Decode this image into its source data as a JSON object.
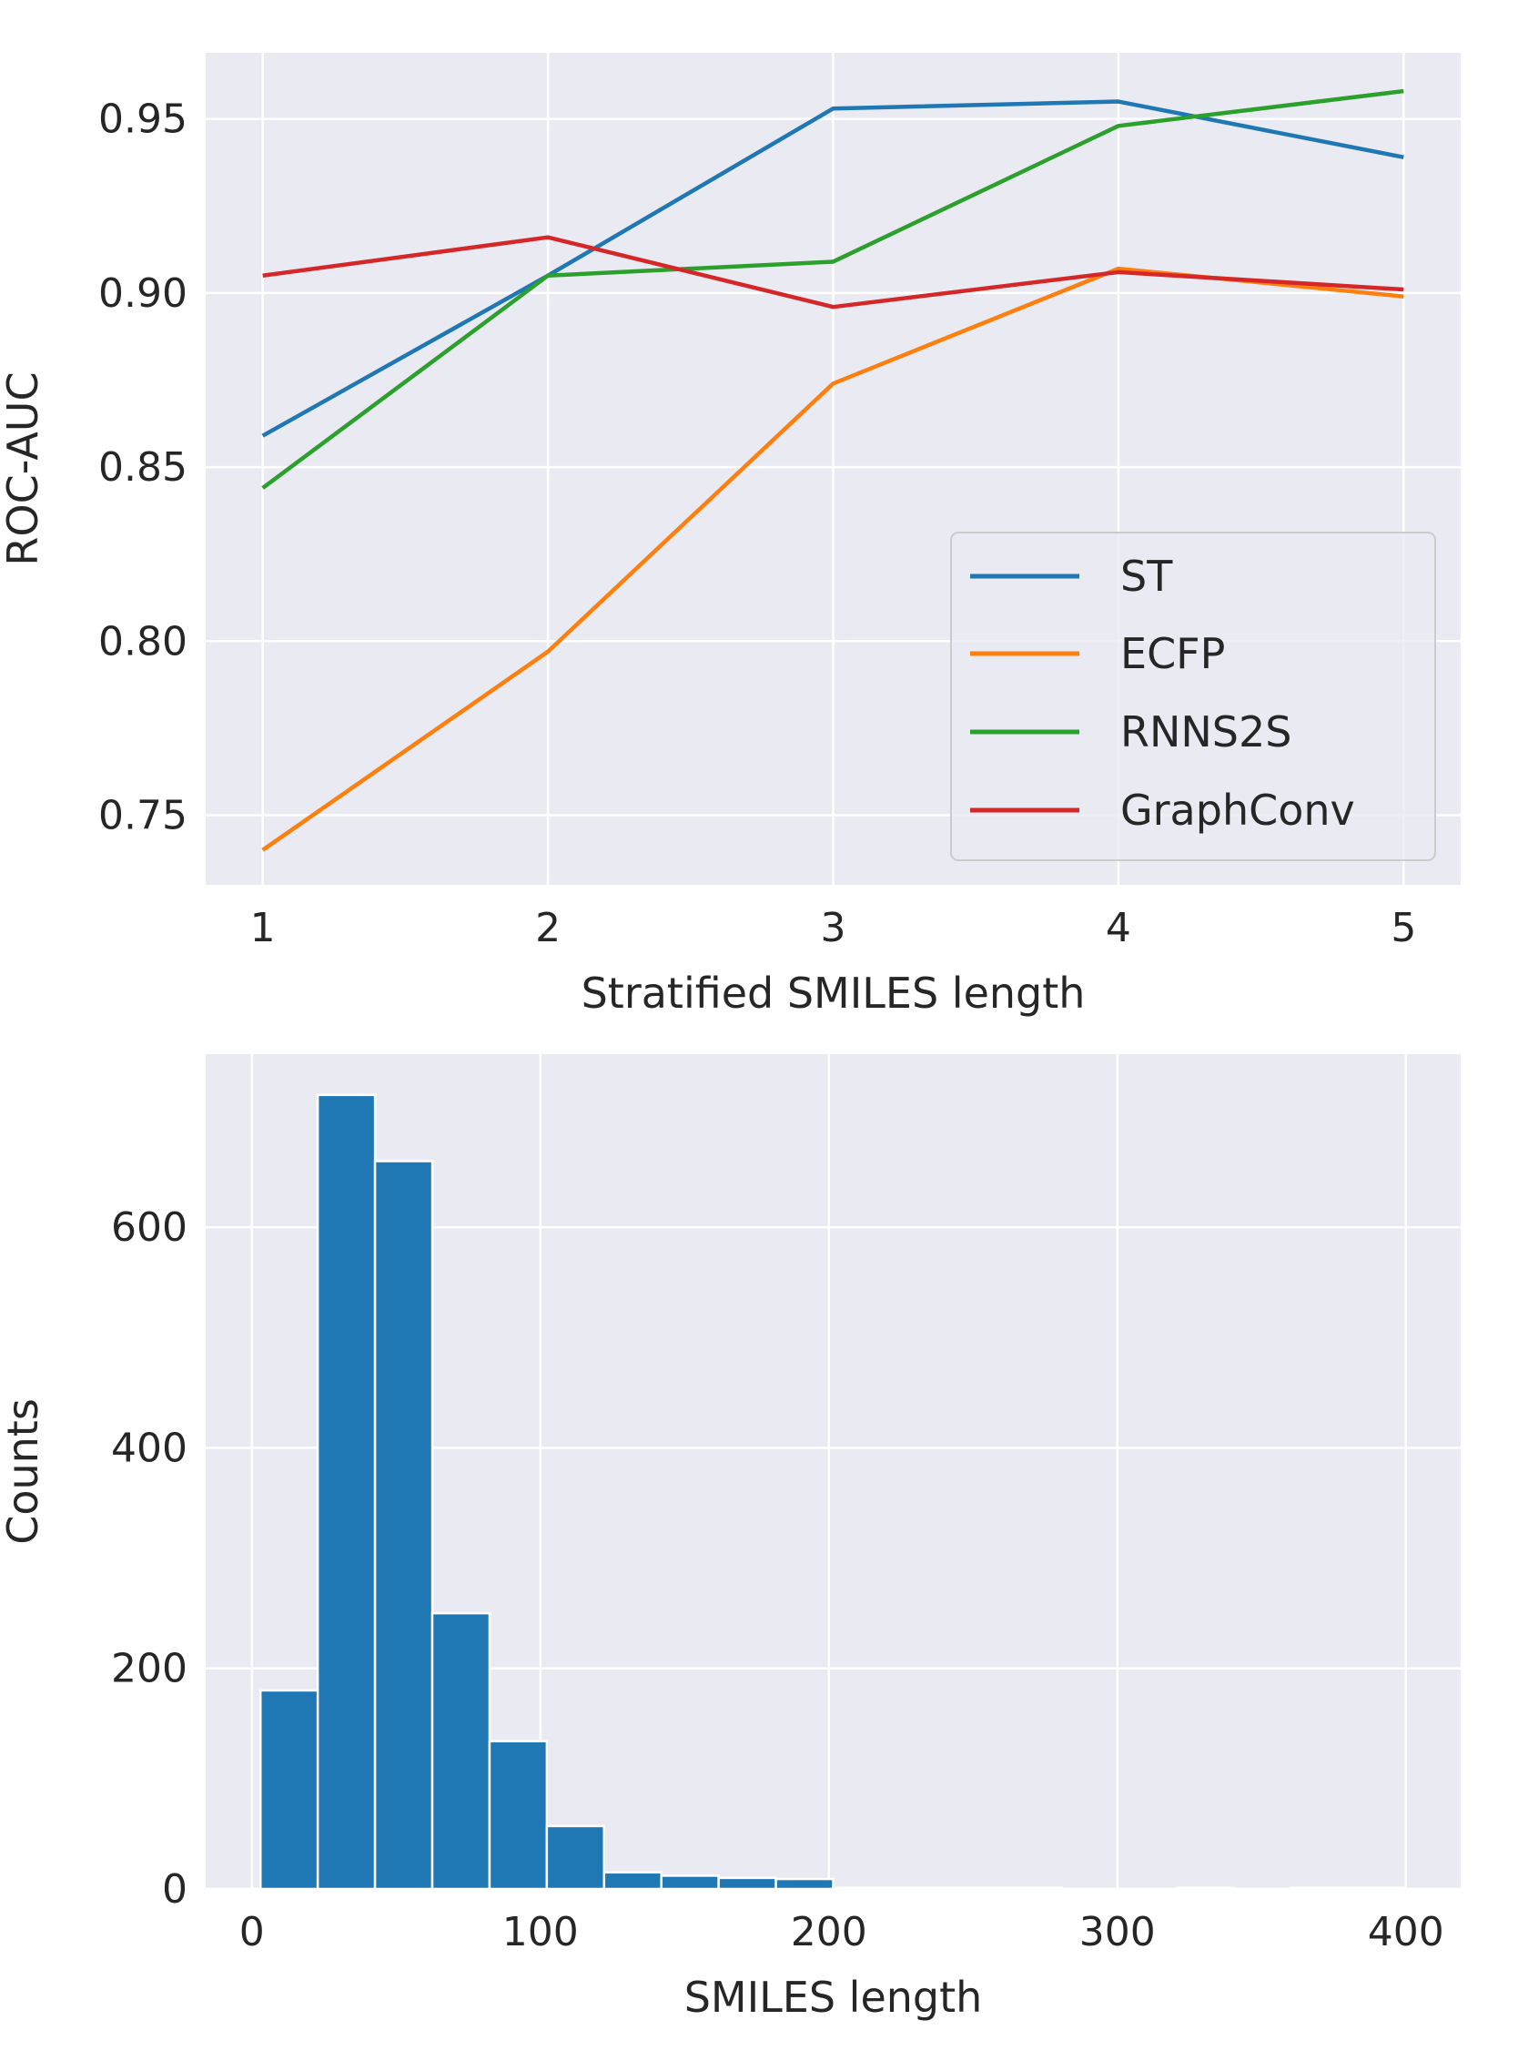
{
  "chart_data": [
    {
      "type": "line",
      "title": "",
      "xlabel": "Stratified SMILES length",
      "ylabel": "ROC-AUC",
      "x": [
        1,
        2,
        3,
        4,
        5
      ],
      "xlim": [
        0.8,
        5.2
      ],
      "ylim": [
        0.73,
        0.969
      ],
      "xticks": [
        "1",
        "2",
        "3",
        "4",
        "5"
      ],
      "yticks": [
        "0.75",
        "0.80",
        "0.85",
        "0.90",
        "0.95"
      ],
      "grid": true,
      "legend_position": "lower-right",
      "series": [
        {
          "name": "ST",
          "color": "#1f77b4",
          "values": [
            0.859,
            0.905,
            0.953,
            0.955,
            0.939
          ]
        },
        {
          "name": "ECFP",
          "color": "#ff7f0e",
          "values": [
            0.74,
            0.797,
            0.874,
            0.907,
            0.899
          ]
        },
        {
          "name": "RNNS2S",
          "color": "#2ca02c",
          "values": [
            0.844,
            0.905,
            0.909,
            0.948,
            0.958
          ]
        },
        {
          "name": "GraphConv",
          "color": "#d62728",
          "values": [
            0.905,
            0.916,
            0.896,
            0.906,
            0.901
          ]
        }
      ]
    },
    {
      "type": "bar",
      "title": "",
      "xlabel": "SMILES length",
      "ylabel": "Counts",
      "bin_edges": [
        3,
        22.85,
        42.7,
        62.55,
        82.4,
        102.25,
        122.1,
        141.95,
        161.8,
        181.65,
        201.5,
        221.35,
        241.2,
        261.05,
        280.9,
        300.75,
        320.6,
        340.45,
        360.3,
        380.15,
        400
      ],
      "values": [
        180,
        720,
        660,
        250,
        134,
        57,
        15,
        12,
        10,
        9,
        1,
        1,
        1,
        1,
        0,
        0,
        1,
        0,
        1,
        1
      ],
      "color": "#1f77b4",
      "xlim": [
        -16,
        419
      ],
      "ylim": [
        0,
        757
      ],
      "xticks": [
        "0",
        "100",
        "200",
        "300",
        "400"
      ],
      "yticks": [
        "0",
        "200",
        "400",
        "600"
      ],
      "grid": true
    }
  ]
}
